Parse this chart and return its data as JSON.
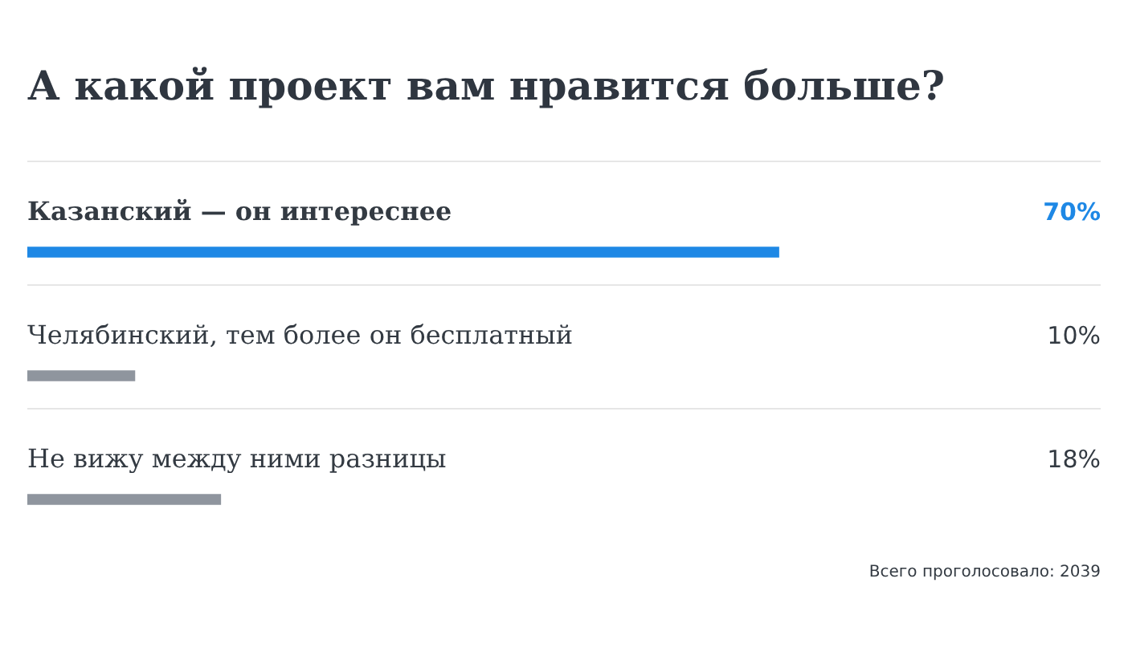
{
  "chart_data": {
    "type": "bar",
    "orientation": "horizontal",
    "title": "А какой проект вам нравится больше?",
    "categories": [
      "Казанский — он интереснее",
      "Челябинский, тем более он бесплатный",
      "Не вижу между ними разницы"
    ],
    "values": [
      70,
      10,
      18
    ],
    "colors": [
      "#1e88e5",
      "#8f959e",
      "#8f959e"
    ],
    "value_labels": [
      "70%",
      "10%",
      "18%"
    ],
    "xlim": [
      0,
      100
    ],
    "tick_labels": "y",
    "grid": "y",
    "legend": false,
    "annotations": [
      "Всего проголосовало: 2039"
    ]
  }
}
